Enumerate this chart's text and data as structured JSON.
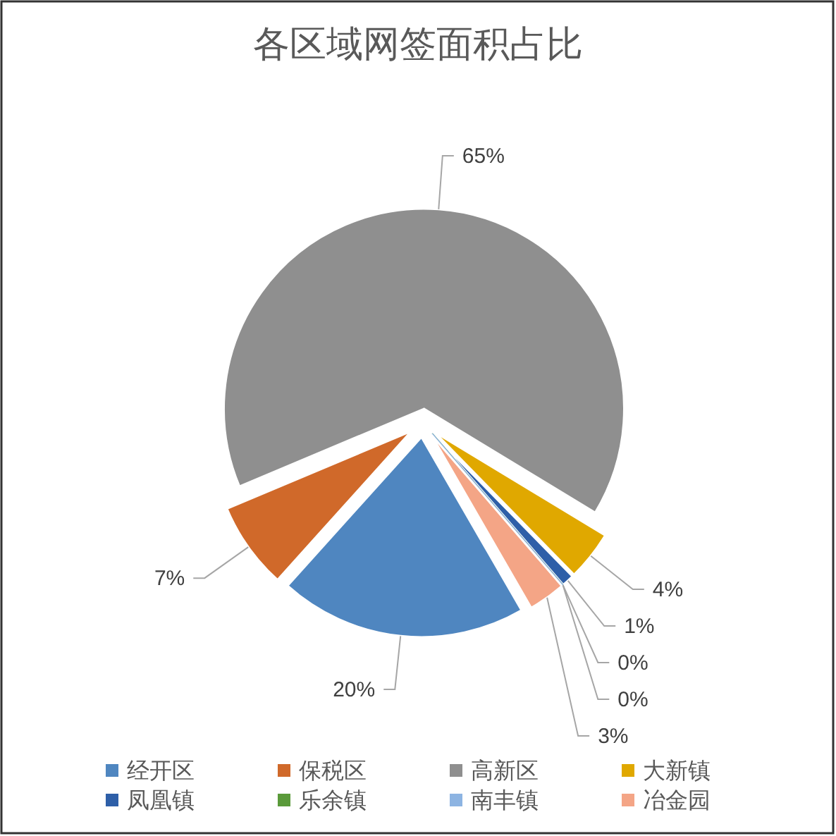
{
  "chart_data": {
    "type": "pie",
    "title": "各区域网签面积占比",
    "categories": [
      "经开区",
      "保税区",
      "高新区",
      "大新镇",
      "凤凰镇",
      "乐余镇",
      "南丰镇",
      "冶金园"
    ],
    "values": [
      20,
      7,
      65,
      4,
      1,
      0,
      0,
      3
    ],
    "colors": [
      "#4f86c0",
      "#d0692a",
      "#8f8f8f",
      "#e0a800",
      "#2e5fa8",
      "#5a9a3a",
      "#8db4e2",
      "#f4a586"
    ],
    "value_labels": [
      "20%",
      "7%",
      "65%",
      "4%",
      "1%",
      "0%",
      "0%",
      "3%"
    ],
    "legend": "bottom"
  }
}
